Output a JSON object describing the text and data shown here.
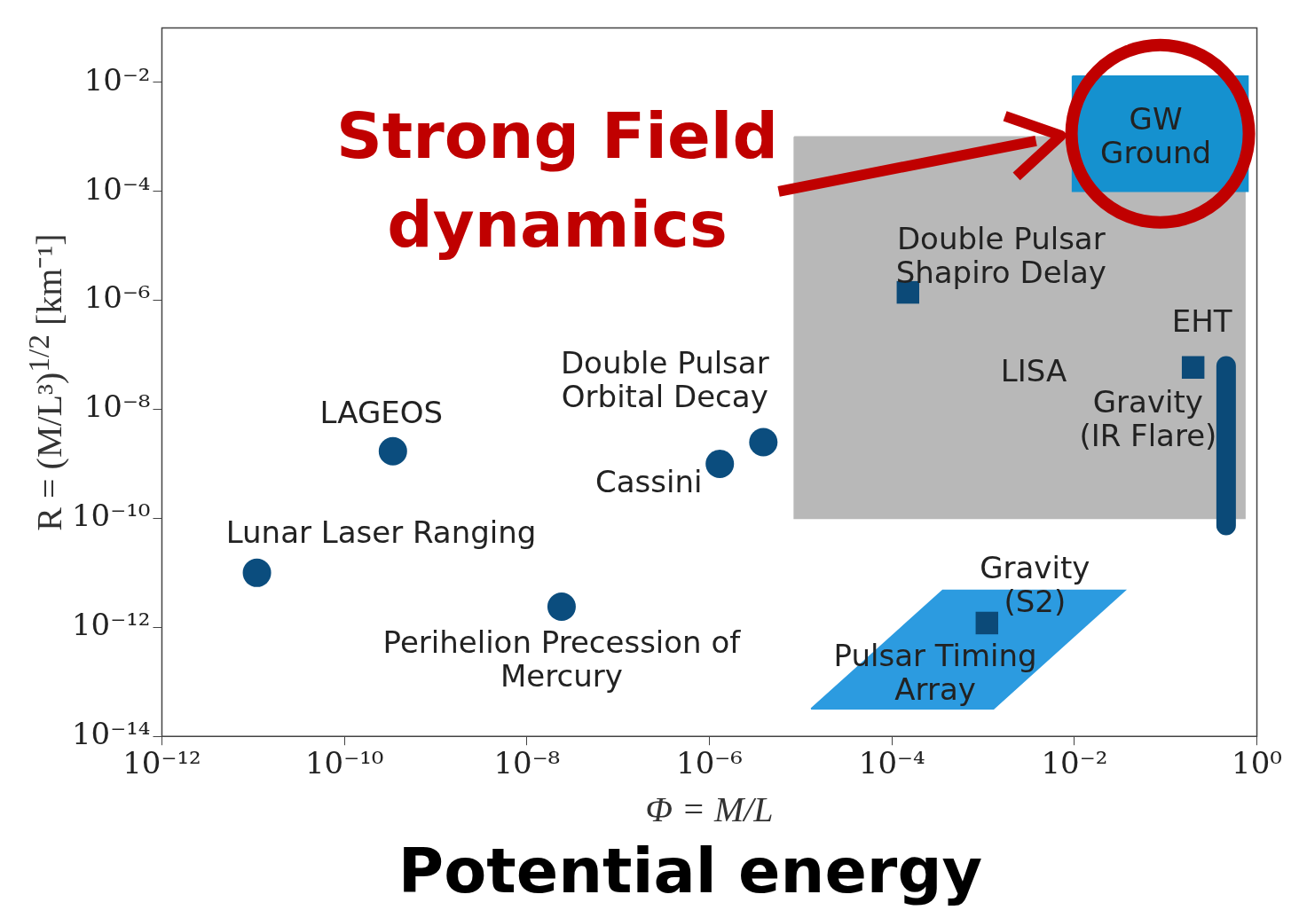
{
  "chart_data": {
    "type": "scatter",
    "xlabel": "Φ = M/L",
    "ylabel": "R = (M/L³)$^{1/2}$ [km⁻¹]",
    "log": "xy",
    "xlim": [
      1e-12,
      1
    ],
    "ylim": [
      1e-14,
      0.1
    ],
    "xticks": [
      {
        "value": 1e-12,
        "label": "10⁻¹²"
      },
      {
        "value": 1e-10,
        "label": "10⁻¹⁰"
      },
      {
        "value": 1e-08,
        "label": "10⁻⁸"
      },
      {
        "value": 1e-06,
        "label": "10⁻⁶"
      },
      {
        "value": 0.0001,
        "label": "10⁻⁴"
      },
      {
        "value": 0.01,
        "label": "10⁻²"
      },
      {
        "value": 1,
        "label": "10⁰"
      }
    ],
    "yticks": [
      {
        "value": 1e-14,
        "label": "10⁻¹⁴"
      },
      {
        "value": 1e-12,
        "label": "10⁻¹²"
      },
      {
        "value": 1e-10,
        "label": "10⁻¹⁰"
      },
      {
        "value": 1e-08,
        "label": "10⁻⁸"
      },
      {
        "value": 1e-06,
        "label": "10⁻⁶"
      },
      {
        "value": 0.0001,
        "label": "10⁻⁴"
      },
      {
        "value": 0.01,
        "label": "10⁻²"
      }
    ],
    "legend": false,
    "annotations": [
      "Strong Field dynamics",
      "Potential energy"
    ],
    "series": [
      {
        "name": "LISA",
        "type": "area",
        "color": "#b8b8b8",
        "x": [
          8.5e-06,
          0.74,
          0.74,
          8.5e-06
        ],
        "values": [
          0.001,
          0.001,
          1e-10,
          1e-10
        ]
      },
      {
        "name": "GW Ground",
        "type": "area",
        "color": "#1591cf",
        "x": [
          0.0095,
          0.8,
          0.8,
          0.0095
        ],
        "values": [
          0.013,
          0.013,
          0.0001,
          0.0001
        ]
      },
      {
        "name": "Pulsar Timing Array",
        "type": "area",
        "color": "#2c9be0",
        "x": [
          1.3e-05,
          0.0013,
          0.036,
          0.00036
        ],
        "values": [
          3.2e-14,
          3.2e-14,
          4.8e-12,
          4.8e-12
        ]
      },
      {
        "name": "Lunar Laser Ranging",
        "marker": "circle",
        "color": "#0b4d7e",
        "x": [
          1.1e-11
        ],
        "values": [
          1e-11
        ]
      },
      {
        "name": "LAGEOS",
        "marker": "circle",
        "color": "#0b4d7e",
        "x": [
          3.4e-10
        ],
        "values": [
          1.7e-09
        ]
      },
      {
        "name": "Perihelion Precession of Mercury",
        "marker": "circle",
        "color": "#0b4d7e",
        "x": [
          2.4e-08
        ],
        "values": [
          2.4e-12
        ]
      },
      {
        "name": "Cassini",
        "marker": "circle",
        "color": "#0b4d7e",
        "x": [
          1.3e-06
        ],
        "values": [
          1e-09
        ]
      },
      {
        "name": "Double Pulsar Orbital Decay",
        "marker": "circle",
        "color": "#0b4d7e",
        "x": [
          3.9e-06
        ],
        "values": [
          2.5e-09
        ]
      },
      {
        "name": "Double Pulsar Shapiro Delay",
        "marker": "square",
        "color": "#0c4a78",
        "x": [
          0.00015
        ],
        "values": [
          1.4e-06
        ]
      },
      {
        "name": "EHT",
        "marker": "square",
        "color": "#0c4a78",
        "x": [
          0.2
        ],
        "values": [
          5.9e-08
        ]
      },
      {
        "name": "Gravity (S2)",
        "marker": "square",
        "color": "#0c4a78",
        "x": [
          0.0011
        ],
        "values": [
          1.2e-12
        ]
      },
      {
        "name": "Gravity (IR Flare)",
        "type": "line",
        "marker": "none",
        "line_style": "solid",
        "color": "#0b4a78",
        "x": [
          0.46,
          0.46
        ],
        "values": [
          6.3e-08,
          7.4e-11
        ]
      }
    ]
  }
}
